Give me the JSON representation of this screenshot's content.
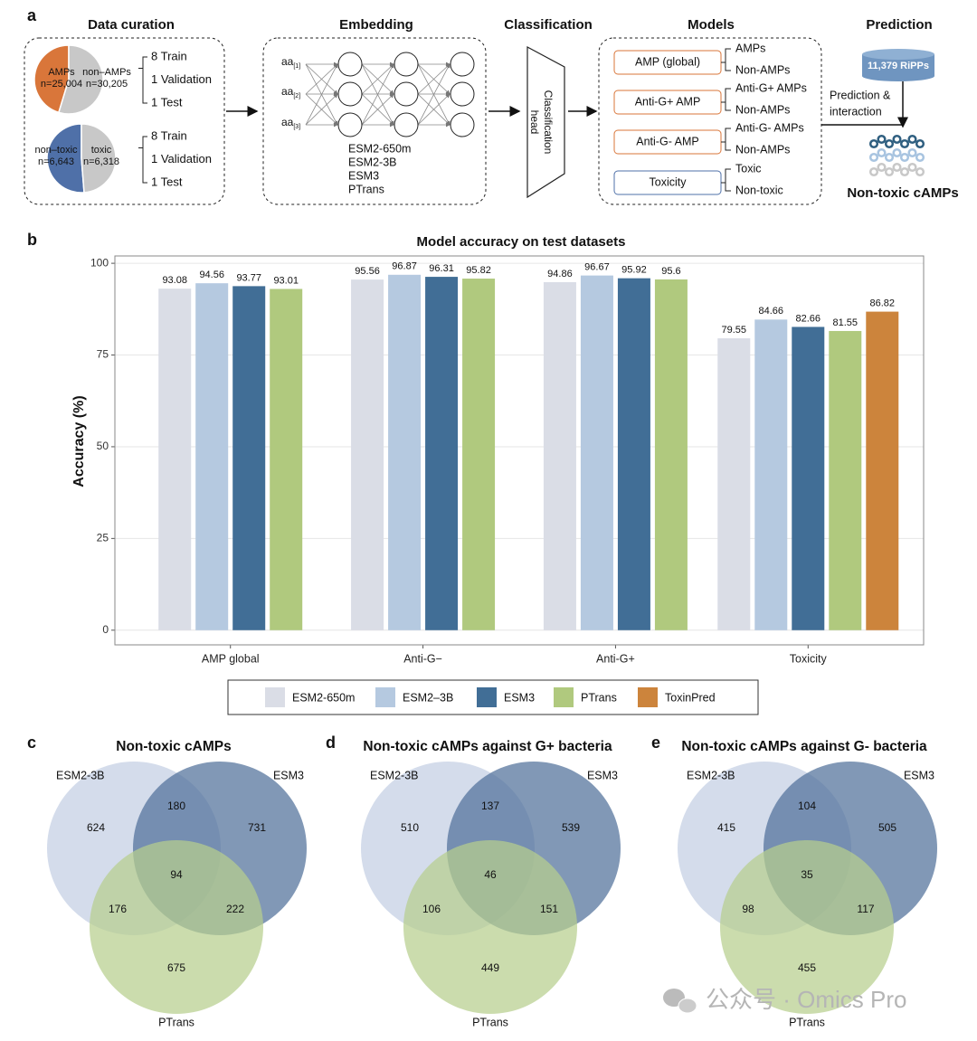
{
  "panel_labels": [
    "a",
    "b",
    "c",
    "d",
    "e"
  ],
  "diagram": {
    "titles": [
      "Data curation",
      "Embedding",
      "Classification",
      "Models",
      "Prediction"
    ],
    "splits": [
      "8 Train",
      "1 Validation",
      "1 Test"
    ],
    "input_base": "aa",
    "input_subscripts": [
      "[1]",
      "[2]",
      "[3]"
    ],
    "embedding_models": [
      "ESM2-650m",
      "ESM2-3B",
      "ESM3",
      "PTrans"
    ],
    "classification_head": [
      "Classification",
      "head"
    ],
    "models": [
      {
        "name": "AMP (global)",
        "color": "#d9763a",
        "outputs": [
          "AMPs",
          "Non-AMPs"
        ]
      },
      {
        "name": "Anti-G+ AMP",
        "color": "#d9763a",
        "outputs": [
          "Anti-G+ AMPs",
          "Non-AMPs"
        ]
      },
      {
        "name": "Anti-G- AMP",
        "color": "#d9763a",
        "outputs": [
          "Anti-G- AMPs",
          "Non-AMPs"
        ]
      },
      {
        "name": "Toxicity",
        "color": "#4f70a8",
        "outputs": [
          "Toxic",
          "Non-toxic"
        ]
      }
    ],
    "database": "11,379 RiPPs",
    "flow_label": [
      "Prediction &",
      "interaction"
    ],
    "result": "Non-toxic cAMPs"
  },
  "chart_data": [
    {
      "type": "pie",
      "categories": [
        "AMPs",
        "non–AMPs"
      ],
      "values": [
        25004,
        30205
      ],
      "value_labels": [
        "n=25,004",
        "n=30,205"
      ],
      "colors": [
        "#d9763a",
        "#c8c8c8"
      ]
    },
    {
      "type": "pie",
      "categories": [
        "non–toxic",
        "toxic"
      ],
      "values": [
        6643,
        6318
      ],
      "value_labels": [
        "n=6,643",
        "n=6,318"
      ],
      "colors": [
        "#4f70a8",
        "#c8c8c8"
      ]
    },
    {
      "type": "bar",
      "title": "Model accuracy on test datasets",
      "y_label": "Accuracy (%)",
      "categories": [
        "AMP global",
        "Anti-G−",
        "Anti-G+",
        "Toxicity"
      ],
      "series": [
        {
          "name": "ESM2-650m",
          "color": "#dadde6",
          "values": [
            93.08,
            95.56,
            94.86,
            79.55
          ]
        },
        {
          "name": "ESM2–3B",
          "color": "#b5c9e0",
          "values": [
            94.56,
            96.87,
            96.67,
            84.66
          ]
        },
        {
          "name": "ESM3",
          "color": "#416e96",
          "values": [
            93.77,
            96.31,
            95.92,
            82.66
          ]
        },
        {
          "name": "PTrans",
          "color": "#b0c97e",
          "values": [
            93.01,
            95.82,
            95.6,
            81.55
          ]
        },
        {
          "name": "ToxinPred",
          "color": "#cc843c",
          "values": [
            null,
            null,
            null,
            86.82
          ]
        }
      ],
      "ylim": [
        -4,
        102
      ],
      "yticks": [
        0,
        25,
        50,
        75,
        100
      ],
      "grid": true,
      "legend": "bottom"
    },
    {
      "type": "venn",
      "title": "Non-toxic cAMPs",
      "sets": [
        "ESM2-3B",
        "ESM3",
        "PTrans"
      ],
      "colors": [
        "#c3cfe3",
        "#50709a",
        "#b7ce8d"
      ],
      "values": [
        624,
        731,
        675,
        180,
        176,
        222,
        94
      ]
    },
    {
      "type": "venn",
      "title": "Non-toxic cAMPs against G+ bacteria",
      "sets": [
        "ESM2-3B",
        "ESM3",
        "PTrans"
      ],
      "colors": [
        "#c3cfe3",
        "#50709a",
        "#b7ce8d"
      ],
      "values": [
        510,
        539,
        449,
        137,
        106,
        151,
        46
      ]
    },
    {
      "type": "venn",
      "title": "Non-toxic cAMPs against G- bacteria",
      "sets": [
        "ESM2-3B",
        "ESM3",
        "PTrans"
      ],
      "colors": [
        "#c3cfe3",
        "#50709a",
        "#b7ce8d"
      ],
      "values": [
        415,
        505,
        455,
        104,
        98,
        117,
        35
      ]
    }
  ],
  "watermark": "公众号 · Omics Pro"
}
